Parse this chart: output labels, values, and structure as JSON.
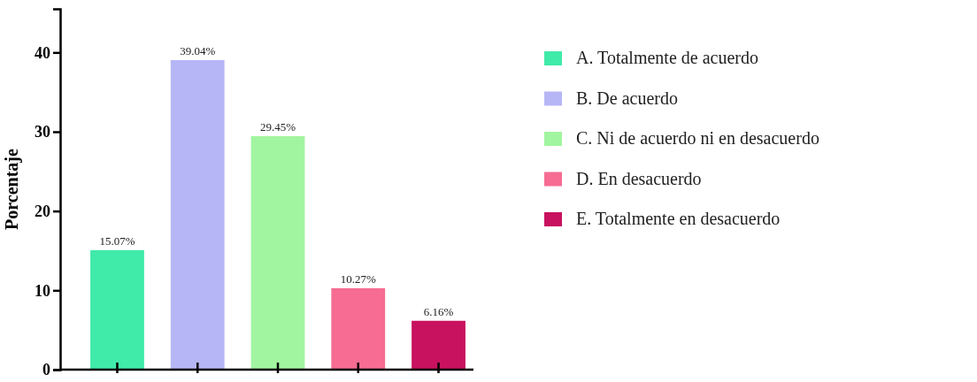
{
  "chart_data": {
    "type": "bar",
    "ylabel": "Porcentaje",
    "stacked": true,
    "categories": [
      null,
      null,
      null,
      null,
      null
    ],
    "series": [
      {
        "name": "A. Totalmente de acuerdo",
        "color": "#40eaa8",
        "values": [
          15.07,
          null,
          null,
          null,
          null
        ],
        "value_labels": [
          "15.07%",
          null,
          null,
          null,
          null
        ]
      },
      {
        "name": "B. De acuerdo",
        "color": "#b6b6f6",
        "values": [
          null,
          39.04,
          null,
          null,
          null
        ],
        "value_labels": [
          null,
          "39.04%",
          null,
          null,
          null
        ]
      },
      {
        "name": "C. Ni de acuerdo ni en desacuerdo",
        "color": "#a2f5a0",
        "values": [
          null,
          null,
          29.45,
          null,
          null
        ],
        "value_labels": [
          null,
          null,
          "29.45%",
          null,
          null
        ]
      },
      {
        "name": "D. En desacuerdo",
        "color": "#f66c92",
        "values": [
          null,
          null,
          null,
          10.27,
          null
        ],
        "value_labels": [
          null,
          null,
          null,
          "10.27%",
          null
        ]
      },
      {
        "name": "E. Totalmente en desacuerdo",
        "color": "#c8125f",
        "values": [
          null,
          null,
          null,
          null,
          6.16
        ],
        "value_labels": [
          null,
          null,
          null,
          null,
          "6.16%"
        ]
      }
    ],
    "ylim": [
      0,
      45.5
    ],
    "yticks": [
      0,
      10,
      20,
      30,
      40
    ],
    "tick_labels": "y",
    "legend": "right"
  }
}
